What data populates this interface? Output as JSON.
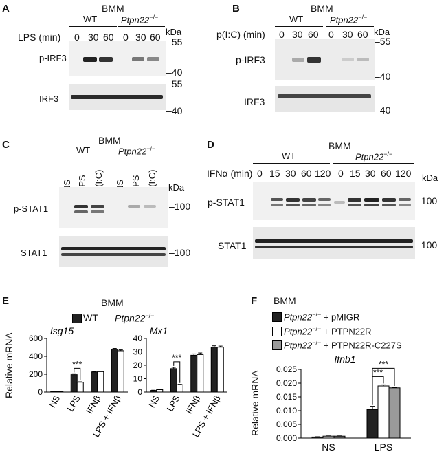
{
  "panels": {
    "A": {
      "letter": "A",
      "cell": "BMM",
      "wt": "WT",
      "ko": "Ptpn22",
      "ko_sup": "−/−",
      "treatment": "LPS (min)",
      "times": [
        "0",
        "30",
        "60",
        "0",
        "30",
        "60"
      ],
      "kda": "kDa",
      "mw_top": [
        "55",
        "40"
      ],
      "mw_bot": [
        "55",
        "40"
      ],
      "blots": [
        "p-IRF3",
        "IRF3"
      ]
    },
    "B": {
      "letter": "B",
      "cell": "BMM",
      "wt": "WT",
      "ko": "Ptpn22",
      "ko_sup": "−/−",
      "treatment": "p(I:C) (min)",
      "times": [
        "0",
        "30",
        "60",
        "0",
        "30",
        "60"
      ],
      "kda": "kDa",
      "mw_top": [
        "55",
        "40"
      ],
      "mw_bot": [
        "40"
      ],
      "blots": [
        "p-IRF3",
        "IRF3"
      ]
    },
    "C": {
      "letter": "C",
      "cell": "BMM",
      "wt": "WT",
      "ko": "Ptpn22",
      "ko_sup": "−/−",
      "lanes": [
        "NS",
        "LPS",
        "p(I:C)",
        "NS",
        "LPS",
        "p(I:C)"
      ],
      "kda": "kDa",
      "mw_top": "100",
      "mw_bot": "100",
      "blots": [
        "p-STAT1",
        "STAT1"
      ]
    },
    "D": {
      "letter": "D",
      "cell": "BMM",
      "wt": "WT",
      "ko": "Ptpn22",
      "ko_sup": "−/−",
      "treatment": "IFNα (min)",
      "times": [
        "0",
        "15",
        "30",
        "60",
        "120",
        "0",
        "15",
        "30",
        "60",
        "120"
      ],
      "kda": "kDa",
      "mw_top": "100",
      "mw_bot": "100",
      "blots": [
        "p-STAT1",
        "STAT1"
      ]
    },
    "E": {
      "letter": "E",
      "cell": "BMM",
      "legend_wt": "WT",
      "legend_ko": "Ptpn22",
      "legend_ko_sup": "−/−",
      "ylabel": "Relative mRNA",
      "sig": "***"
    },
    "F": {
      "letter": "F",
      "cell": "BMM",
      "legend": [
        {
          "gene": "Ptpn22",
          "sup": "−/−",
          "rest": " + pMIGR",
          "color": "#222222"
        },
        {
          "gene": "Ptpn22",
          "sup": "−/−",
          "rest": " + PTPN22R",
          "color": "#ffffff"
        },
        {
          "gene": "Ptpn22",
          "sup": "−/−",
          "rest": " + PTPN22R-C227S",
          "color": "#9a9a9a"
        }
      ],
      "ylabel": "Relative mRNA",
      "sig": "***"
    }
  },
  "chart_data": [
    {
      "type": "bar",
      "title": "Isg15",
      "ylabel": "Relative mRNA",
      "ylim": [
        0,
        600
      ],
      "yticks": [
        0,
        200,
        400,
        600
      ],
      "categories": [
        "NS",
        "LPS",
        "IFNβ",
        "LPS + IFNβ"
      ],
      "series": [
        {
          "name": "WT",
          "values": [
            5,
            195,
            225,
            480
          ],
          "errors": [
            1,
            10,
            5,
            8
          ]
        },
        {
          "name": "Ptpn22−/−",
          "values": [
            7,
            110,
            228,
            462
          ],
          "errors": [
            1,
            5,
            5,
            10
          ]
        }
      ]
    },
    {
      "type": "bar",
      "title": "Mx1",
      "ylim": [
        0,
        40
      ],
      "yticks": [
        0,
        10,
        20,
        30,
        40
      ],
      "categories": [
        "NS",
        "LPS",
        "IFNβ",
        "LPS + IFNβ"
      ],
      "series": [
        {
          "name": "WT",
          "values": [
            1.2,
            17.5,
            27.5,
            33.5
          ],
          "errors": [
            0.2,
            1,
            1,
            1
          ]
        },
        {
          "name": "Ptpn22−/−",
          "values": [
            1.8,
            5.5,
            28,
            33.5
          ],
          "errors": [
            0.2,
            0.3,
            1.2,
            0.8
          ]
        }
      ]
    },
    {
      "type": "bar",
      "title": "Ifnb1",
      "ylabel": "Relative mRNA",
      "ylim": [
        0,
        0.025
      ],
      "yticks": [
        "0.000",
        "0.005",
        "0.010",
        "0.015",
        "0.020",
        "0.025"
      ],
      "categories": [
        "NS",
        "LPS"
      ],
      "series": [
        {
          "name": "Ptpn22−/− + pMIGR",
          "values": [
            0.0004,
            0.0104
          ],
          "errors": [
            0.0001,
            0.0012
          ]
        },
        {
          "name": "Ptpn22−/− + PTPN22R",
          "values": [
            0.0007,
            0.019
          ],
          "errors": [
            0.0001,
            0.0004
          ]
        },
        {
          "name": "Ptpn22−/− + PTPN22R-C227S",
          "values": [
            0.0007,
            0.0183
          ],
          "errors": [
            0.0001,
            0.0002
          ]
        }
      ]
    }
  ]
}
